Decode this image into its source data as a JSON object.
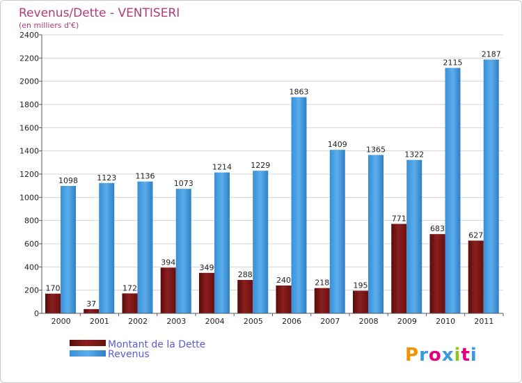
{
  "chart_data": {
    "type": "bar",
    "title": "Revenus/Dette - VENTISERI",
    "subtitle": "(en milliers d'€)",
    "categories": [
      "2000",
      "2001",
      "2002",
      "2003",
      "2004",
      "2005",
      "2006",
      "2007",
      "2008",
      "2009",
      "2010",
      "2011"
    ],
    "series": [
      {
        "name": "Montant de la Dette",
        "color": "#8b1a1a",
        "values": [
          170,
          37,
          172,
          394,
          349,
          288,
          240,
          218,
          195,
          771,
          683,
          627
        ]
      },
      {
        "name": "Revenus",
        "color": "#4a9ee0",
        "values": [
          1098,
          1123,
          1136,
          1073,
          1214,
          1229,
          1863,
          1409,
          1365,
          1322,
          2115,
          2187
        ]
      }
    ],
    "ylim": [
      0,
      2400
    ],
    "yticks": [
      0,
      200,
      400,
      600,
      800,
      1000,
      1200,
      1400,
      1600,
      1800,
      2000,
      2200,
      2400
    ],
    "grid": true,
    "legend": "bottom-left"
  },
  "branding": {
    "logo_text": "Proxiti",
    "logo_colors": [
      "#f39200",
      "#3a9ad9",
      "#e2007a",
      "#3a9ad9",
      "#95c11f",
      "#e2007a",
      "#3a9ad9"
    ]
  }
}
